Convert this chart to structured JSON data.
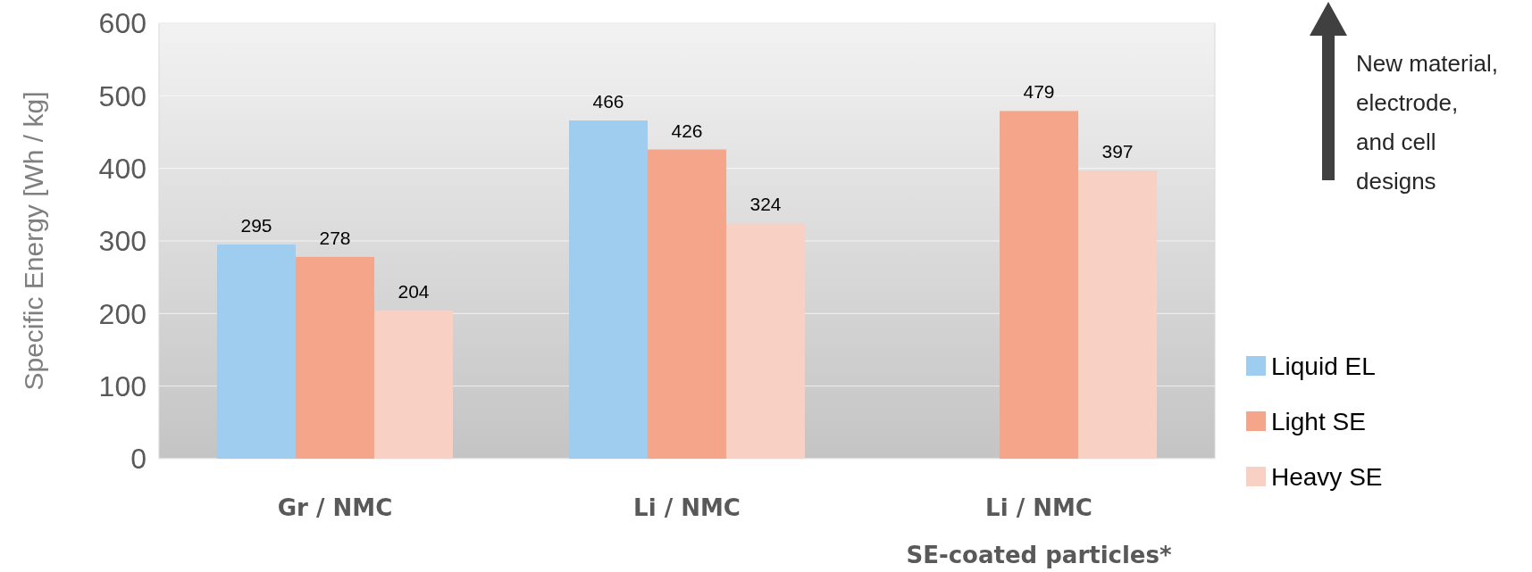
{
  "chart_data": {
    "type": "bar",
    "ylabel": "Specific Energy [Wh / kg]",
    "categories": [
      "Gr / NMC",
      "Li / NMC",
      "Li / NMC\nSE-coated particles*"
    ],
    "series": [
      {
        "name": "Liquid EL",
        "color": "#9fcdf0",
        "values": [
          295,
          466,
          null
        ]
      },
      {
        "name": "Light SE",
        "color": "#f4a58a",
        "values": [
          278,
          426,
          479
        ]
      },
      {
        "name": "Heavy SE",
        "color": "#f8d0c4",
        "values": [
          204,
          324,
          397
        ]
      }
    ],
    "ylim": [
      0,
      600
    ],
    "yticks": [
      0,
      100,
      200,
      300,
      400,
      500,
      600
    ],
    "grid": "y",
    "legend": "right",
    "data_labels": true,
    "annotations": [
      "New material,\nelectrode,\nand cell\ndesigns"
    ]
  }
}
